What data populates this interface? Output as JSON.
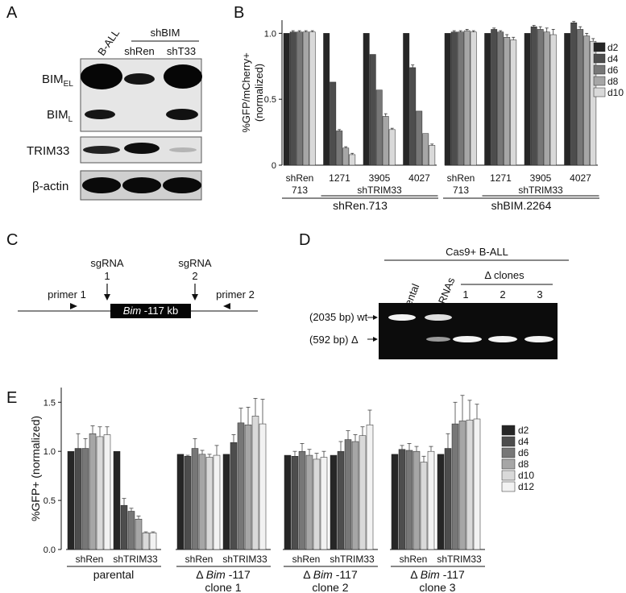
{
  "panels": {
    "A": "A",
    "B": "B",
    "C": "C",
    "D": "D",
    "E": "E"
  },
  "panelA": {
    "lanes": [
      "B-ALL",
      "shRen",
      "shT33"
    ],
    "group_label": "shBIM",
    "rows": [
      {
        "label": "BIM",
        "sub": "EL"
      },
      {
        "label": "BIM",
        "sub": "L"
      },
      {
        "label": "TRIM33",
        "sub": ""
      },
      {
        "label": "β-actin",
        "sub": ""
      }
    ]
  },
  "panelC": {
    "sg1": [
      "sgRNA",
      "1"
    ],
    "sg2": [
      "sgRNA",
      "2"
    ],
    "primer1": "primer 1",
    "primer2": "primer 2",
    "gene_italic": "Bim",
    "gene_rest": " -117 kb"
  },
  "panelD": {
    "header": "Cas9+ B-ALL",
    "lanes": [
      "parental",
      "+sgRNAs"
    ],
    "clones_label": "Δ clones",
    "clone_numbers": [
      "1",
      "2",
      "3"
    ],
    "band_wt": "(2035 bp) wt",
    "band_delta": "(592 bp) Δ"
  },
  "chart_data": [
    {
      "type": "bar",
      "panel": "B",
      "ylabel": "%GFP/mCherry+ (normalized)",
      "ylim": [
        0,
        1.1
      ],
      "yticks": [
        "0",
        "0.5",
        "1.0"
      ],
      "ytick_values": [
        0,
        0.5,
        1.0
      ],
      "series_names": [
        "d2",
        "d4",
        "d6",
        "d8",
        "d10"
      ],
      "colors": [
        "#262626",
        "#4d4d4d",
        "#777777",
        "#a6a6a6",
        "#d9d9d9"
      ],
      "legend": "right",
      "subplots": [
        {
          "title": "shRen.713",
          "groups": [
            {
              "label": [
                "shRen",
                "713"
              ],
              "values": [
                1.0,
                1.01,
                1.01,
                1.01,
                1.01
              ],
              "errors": [
                0,
                0.01,
                0.01,
                0.01,
                0.01
              ]
            },
            {
              "label": [
                "1271",
                ""
              ],
              "values": [
                1.0,
                0.63,
                0.26,
                0.13,
                0.08
              ],
              "errors": [
                0,
                0,
                0.01,
                0.01,
                0.01
              ]
            },
            {
              "label": [
                "3905",
                ""
              ],
              "values": [
                1.0,
                0.84,
                0.57,
                0.37,
                0.27
              ],
              "errors": [
                0,
                0,
                0,
                0.02,
                0.01
              ]
            },
            {
              "label": [
                "4027",
                ""
              ],
              "values": [
                1.0,
                0.74,
                0.41,
                0.24,
                0.15
              ],
              "errors": [
                0,
                0.02,
                0,
                0,
                0.01
              ]
            }
          ],
          "bracket": "shTRIM33"
        },
        {
          "title": "shBIM.2264",
          "groups": [
            {
              "label": [
                "shRen",
                "713"
              ],
              "values": [
                1.0,
                1.01,
                1.01,
                1.02,
                1.01
              ],
              "errors": [
                0,
                0.01,
                0.01,
                0.01,
                0.01
              ]
            },
            {
              "label": [
                "1271",
                ""
              ],
              "values": [
                1.0,
                1.03,
                1.01,
                0.97,
                0.95
              ],
              "errors": [
                0,
                0.01,
                0.01,
                0.02,
                0.02
              ]
            },
            {
              "label": [
                "3905",
                ""
              ],
              "values": [
                1.0,
                1.05,
                1.03,
                1.01,
                0.99
              ],
              "errors": [
                0,
                0.01,
                0.02,
                0.03,
                0.04
              ]
            },
            {
              "label": [
                "4027",
                ""
              ],
              "values": [
                1.0,
                1.08,
                1.03,
                0.98,
                0.94
              ],
              "errors": [
                0,
                0.01,
                0.02,
                0.02,
                0.02
              ]
            }
          ],
          "bracket": "shTRIM33"
        }
      ]
    },
    {
      "type": "bar",
      "panel": "E",
      "ylabel": "%GFP+ (normalized)",
      "ylim": [
        0,
        1.65
      ],
      "yticks": [
        "0.0",
        "0.5",
        "1.0",
        "1.5"
      ],
      "ytick_values": [
        0,
        0.5,
        1.0,
        1.5
      ],
      "series_names": [
        "d2",
        "d4",
        "d6",
        "d8",
        "d10",
        "d12"
      ],
      "colors": [
        "#262626",
        "#4d4d4d",
        "#777777",
        "#a6a6a6",
        "#d9d9d9",
        "#f2f2f2"
      ],
      "legend": "right",
      "subplots": [
        {
          "title": [
            "parental",
            ""
          ],
          "title_italic_parts": false,
          "groups": [
            {
              "label": "shRen",
              "values": [
                1.0,
                1.03,
                1.03,
                1.18,
                1.15,
                1.17
              ],
              "errors": [
                0,
                0.15,
                0.1,
                0.08,
                0.1,
                0.08
              ]
            },
            {
              "label": "shTRIM33",
              "values": [
                1.0,
                0.45,
                0.39,
                0.31,
                0.17,
                0.17
              ],
              "errors": [
                0,
                0.07,
                0.03,
                0.03,
                0.01,
                0.01
              ]
            }
          ]
        },
        {
          "title": [
            "Δ ",
            "Bim",
            " -117",
            "clone 1"
          ],
          "groups": [
            {
              "label": "shRen",
              "values": [
                0.97,
                0.95,
                1.03,
                0.97,
                0.94,
                0.96
              ],
              "errors": [
                0,
                0.01,
                0.1,
                0.04,
                0.03,
                0.1
              ]
            },
            {
              "label": "shTRIM33",
              "values": [
                0.97,
                1.09,
                1.29,
                1.27,
                1.36,
                1.28
              ],
              "errors": [
                0,
                0.08,
                0.15,
                0.18,
                0.18,
                0.25
              ]
            }
          ]
        },
        {
          "title": [
            "Δ ",
            "Bim",
            " -117",
            "clone 2"
          ],
          "groups": [
            {
              "label": "shRen",
              "values": [
                0.96,
                0.95,
                1.0,
                0.96,
                0.92,
                0.94
              ],
              "errors": [
                0,
                0.05,
                0.08,
                0.06,
                0.06,
                0.06
              ]
            },
            {
              "label": "shTRIM33",
              "values": [
                0.96,
                1.0,
                1.12,
                1.1,
                1.16,
                1.27
              ],
              "errors": [
                0,
                0.1,
                0.09,
                0.07,
                0.09,
                0.15
              ]
            }
          ]
        },
        {
          "title": [
            "Δ ",
            "Bim",
            " -117",
            "clone 3"
          ],
          "groups": [
            {
              "label": "shRen",
              "values": [
                0.97,
                1.02,
                1.01,
                1.0,
                0.89,
                1.0
              ],
              "errors": [
                0,
                0.04,
                0.07,
                0.05,
                0.06,
                0.05
              ]
            },
            {
              "label": "shTRIM33",
              "values": [
                0.97,
                1.03,
                1.28,
                1.31,
                1.32,
                1.33
              ],
              "errors": [
                0,
                0.15,
                0.22,
                0.26,
                0.2,
                0.15
              ]
            }
          ]
        }
      ]
    }
  ]
}
